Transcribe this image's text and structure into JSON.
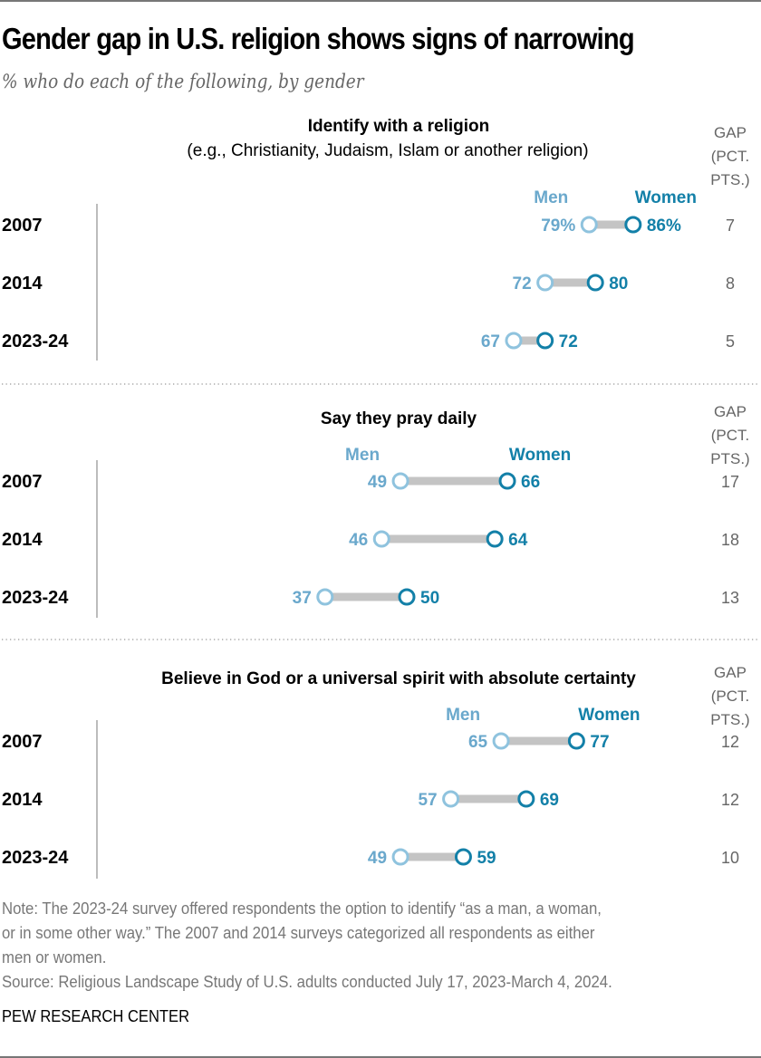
{
  "title": "Gender gap in U.S. religion shows signs of narrowing",
  "subtitle": "% who do each of the following, by gender",
  "colors": {
    "men": "#8fc3de",
    "men_text": "#6aa8cc",
    "women": "#1380a8",
    "connector": "#c4c4c4",
    "gap_text": "#666666"
  },
  "chart_data": {
    "type": "dot-plot",
    "series_names": [
      "Men",
      "Women"
    ],
    "gap_header": [
      "GAP",
      "(PCT.",
      "PTS.)"
    ],
    "xlim": [
      0,
      100
    ],
    "panels": [
      {
        "title": "Identify with a religion",
        "subtitle": "(e.g., Christianity, Judaism, Islam or another religion)",
        "rows": [
          {
            "label": "2007",
            "men": 79,
            "women": 86,
            "men_label": "79%",
            "women_label": "86%",
            "gap": "7"
          },
          {
            "label": "2014",
            "men": 72,
            "women": 80,
            "men_label": "72",
            "women_label": "80",
            "gap": "8"
          },
          {
            "label": "2023-24",
            "men": 67,
            "women": 72,
            "men_label": "67",
            "women_label": "72",
            "gap": "5"
          }
        ]
      },
      {
        "title": "Say they pray daily",
        "subtitle": "",
        "rows": [
          {
            "label": "2007",
            "men": 49,
            "women": 66,
            "men_label": "49",
            "women_label": "66",
            "gap": "17"
          },
          {
            "label": "2014",
            "men": 46,
            "women": 64,
            "men_label": "46",
            "women_label": "64",
            "gap": "18"
          },
          {
            "label": "2023-24",
            "men": 37,
            "women": 50,
            "men_label": "37",
            "women_label": "50",
            "gap": "13"
          }
        ]
      },
      {
        "title": "Believe in God or a universal spirit with absolute certainty",
        "subtitle": "",
        "rows": [
          {
            "label": "2007",
            "men": 65,
            "women": 77,
            "men_label": "65",
            "women_label": "77",
            "gap": "12"
          },
          {
            "label": "2014",
            "men": 57,
            "women": 69,
            "men_label": "57",
            "women_label": "69",
            "gap": "12"
          },
          {
            "label": "2023-24",
            "men": 49,
            "women": 59,
            "men_label": "49",
            "women_label": "59",
            "gap": "10"
          }
        ]
      }
    ]
  },
  "footer": {
    "note_lines": [
      "Note: The 2023-24 survey offered respondents the option to identify “as a man, a woman,",
      "or in some other way.” The 2007 and 2014 surveys categorized all respondents as either",
      "men or women."
    ],
    "source": "Source: Religious Landscape Study of U.S. adults conducted July 17, 2023-March 4, 2024.",
    "brand": "PEW RESEARCH CENTER"
  }
}
